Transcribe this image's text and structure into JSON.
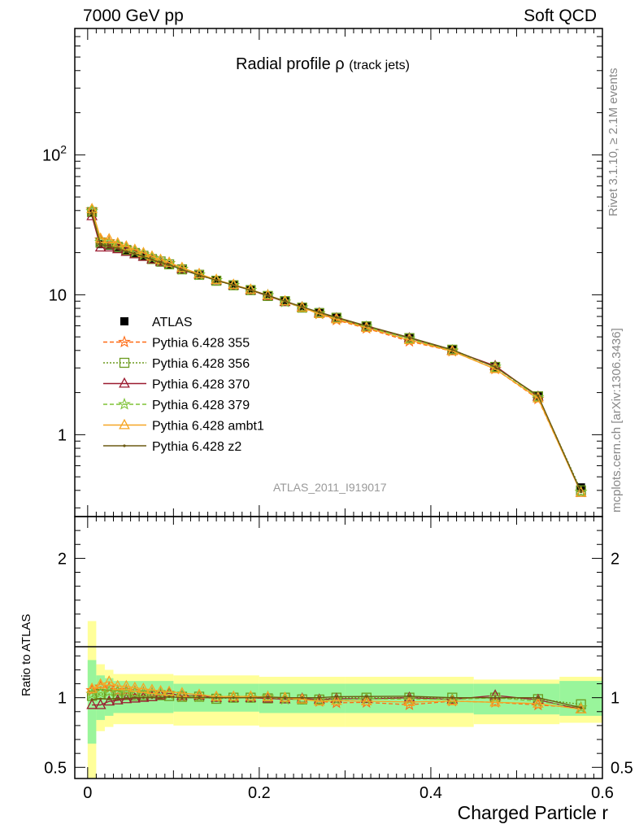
{
  "header": {
    "left": "7000 GeV pp",
    "right": "Soft QCD"
  },
  "side_text": {
    "rivet": "Rivet 3.1.10, ≥ 2.1M events",
    "mcplots": "mcplots.cern.ch [arXiv:1306.3436]"
  },
  "chart_data": {
    "type": "line",
    "title": "Radial profile ρ",
    "title_suffix": "(track jets)",
    "analysis_id": "ATLAS_2011_I919017",
    "xlabel": "Charged Particle r",
    "ylabel": "",
    "ratio_ylabel": "Ratio to ATLAS",
    "xlim": [
      -0.015,
      0.6
    ],
    "ylim": [
      0.26,
      800
    ],
    "y_log": true,
    "ratio_ylim": [
      0.42,
      2.3
    ],
    "x_ticks": [
      "0",
      "0.2",
      "0.4",
      "0.6"
    ],
    "y_ticks": [
      "1",
      "10",
      "10^2"
    ],
    "ratio_ticks": [
      "0.5",
      "1",
      "2"
    ],
    "legend_position": "middle-left",
    "x": [
      0.005,
      0.015,
      0.025,
      0.035,
      0.045,
      0.055,
      0.065,
      0.075,
      0.085,
      0.095,
      0.11,
      0.13,
      0.15,
      0.17,
      0.19,
      0.21,
      0.23,
      0.25,
      0.27,
      0.29,
      0.325,
      0.375,
      0.425,
      0.475,
      0.525,
      0.575
    ],
    "series": [
      {
        "name": "ATLAS",
        "color": "#000000",
        "marker": "square-filled",
        "dash": "none",
        "values": [
          38.5,
          23.0,
          22.4,
          21.6,
          20.5,
          19.6,
          18.7,
          17.8,
          17.0,
          16.3,
          15.1,
          13.8,
          12.7,
          11.7,
          10.8,
          9.85,
          9.0,
          8.2,
          7.5,
          6.85,
          5.95,
          4.9,
          4.05,
          3.05,
          1.9,
          0.42
        ]
      },
      {
        "name": "Pythia 6.428 355",
        "color": "#ff6a13",
        "marker": "star",
        "dash": "5,3",
        "values": [
          40.5,
          24.8,
          24.0,
          22.7,
          21.6,
          20.5,
          19.4,
          18.4,
          17.4,
          16.8,
          15.2,
          13.9,
          12.7,
          11.7,
          10.8,
          9.9,
          8.9,
          8.1,
          7.3,
          6.6,
          5.75,
          4.65,
          3.95,
          2.95,
          1.8,
          0.39
        ]
      },
      {
        "name": "Pythia 6.428 356",
        "color": "#6b9a1e",
        "marker": "square-open",
        "dash": "2,2",
        "values": [
          39.0,
          23.6,
          22.9,
          22.0,
          20.9,
          19.9,
          19.0,
          18.0,
          17.3,
          16.5,
          15.2,
          13.9,
          12.6,
          11.7,
          10.8,
          9.8,
          9.0,
          8.1,
          7.4,
          6.85,
          5.95,
          4.9,
          4.05,
          3.05,
          1.88,
          0.4
        ]
      },
      {
        "name": "Pythia 6.428 370",
        "color": "#9b1b30",
        "marker": "triangle-open",
        "dash": "none",
        "values": [
          36.5,
          21.8,
          21.8,
          21.2,
          20.3,
          19.5,
          18.7,
          17.9,
          17.3,
          16.8,
          15.3,
          14.0,
          12.7,
          11.7,
          10.8,
          9.8,
          8.9,
          8.15,
          7.4,
          6.8,
          5.9,
          4.9,
          4.0,
          3.1,
          1.87,
          0.385
        ]
      },
      {
        "name": "Pythia 6.428 379",
        "color": "#7ec235",
        "marker": "star",
        "dash": "5,3",
        "values": [
          39.5,
          23.8,
          23.4,
          22.5,
          21.3,
          20.3,
          19.3,
          18.3,
          17.5,
          16.7,
          15.3,
          13.9,
          12.7,
          11.7,
          10.8,
          9.9,
          8.9,
          8.1,
          7.35,
          6.75,
          5.9,
          4.85,
          4.0,
          3.05,
          1.85,
          0.39
        ]
      },
      {
        "name": "Pythia 6.428 ambt1",
        "color": "#f6a623",
        "marker": "triangle-open",
        "dash": "none",
        "values": [
          41.0,
          25.2,
          25.0,
          23.4,
          22.2,
          21.0,
          19.9,
          18.8,
          17.8,
          17.0,
          15.6,
          14.1,
          12.8,
          11.8,
          10.9,
          9.9,
          9.0,
          8.1,
          7.3,
          6.7,
          5.8,
          4.75,
          3.95,
          2.95,
          1.82,
          0.385
        ]
      },
      {
        "name": "Pythia 6.428 z2",
        "color": "#6b5a12",
        "marker": "dot",
        "dash": "none",
        "values": [
          38.0,
          22.8,
          22.2,
          21.5,
          20.4,
          19.6,
          18.7,
          17.8,
          17.0,
          16.4,
          15.1,
          13.8,
          12.7,
          11.7,
          10.8,
          9.9,
          9.0,
          8.2,
          7.5,
          6.9,
          6.0,
          4.95,
          4.05,
          3.05,
          1.9,
          0.39
        ]
      }
    ],
    "ratio_band_stat": {
      "color": "#99f59b",
      "bins": [
        [
          0.0,
          0.01,
          0.67,
          1.27
        ],
        [
          0.01,
          0.02,
          0.84,
          1.16
        ],
        [
          0.02,
          0.03,
          0.87,
          1.14
        ],
        [
          0.03,
          0.1,
          0.89,
          1.12
        ],
        [
          0.1,
          0.2,
          0.9,
          1.1
        ],
        [
          0.2,
          0.3,
          0.89,
          1.1
        ],
        [
          0.3,
          0.45,
          0.89,
          1.1
        ],
        [
          0.45,
          0.55,
          0.88,
          1.1
        ],
        [
          0.55,
          0.6,
          0.87,
          1.12
        ]
      ]
    },
    "ratio_band_syst": {
      "color": "#ffff99",
      "bins": [
        [
          0.0,
          0.01,
          0.33,
          1.55
        ],
        [
          0.01,
          0.02,
          0.76,
          1.24
        ],
        [
          0.02,
          0.03,
          0.79,
          1.2
        ],
        [
          0.03,
          0.1,
          0.81,
          1.17
        ],
        [
          0.1,
          0.2,
          0.8,
          1.16
        ],
        [
          0.2,
          0.3,
          0.79,
          1.15
        ],
        [
          0.3,
          0.45,
          0.79,
          1.15
        ],
        [
          0.45,
          0.55,
          0.81,
          1.13
        ],
        [
          0.55,
          0.6,
          0.82,
          1.15
        ]
      ]
    }
  }
}
